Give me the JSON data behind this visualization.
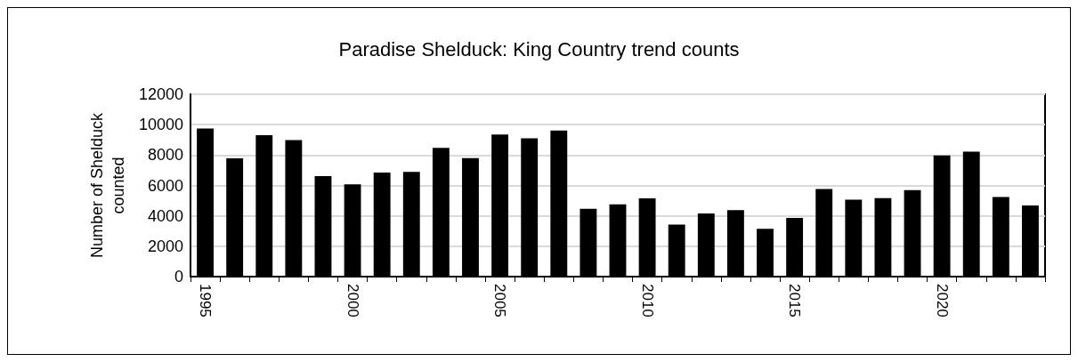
{
  "chart_data": {
    "type": "bar",
    "title": "Paradise Shelduck: King Country trend counts",
    "ylabel": "Number of Shelduck\ncounted",
    "categories": [
      "1995",
      null,
      null,
      null,
      null,
      "2000",
      null,
      null,
      null,
      null,
      "2005",
      null,
      null,
      null,
      null,
      "2010",
      null,
      null,
      null,
      null,
      "2015",
      null,
      null,
      null,
      null,
      "2020",
      null,
      null,
      null
    ],
    "values": [
      9750,
      7780,
      9310,
      8990,
      6610,
      6080,
      6850,
      6890,
      8470,
      7800,
      9350,
      9100,
      9610,
      4470,
      4750,
      5150,
      3420,
      4150,
      4370,
      3140,
      3870,
      5770,
      5060,
      5170,
      5700,
      7980,
      8220,
      5240,
      4690
    ],
    "color": "#000000",
    "ylim": [
      0,
      12000
    ],
    "yticks": [
      0,
      2000,
      4000,
      6000,
      8000,
      10000,
      12000
    ],
    "grid": "y"
  }
}
